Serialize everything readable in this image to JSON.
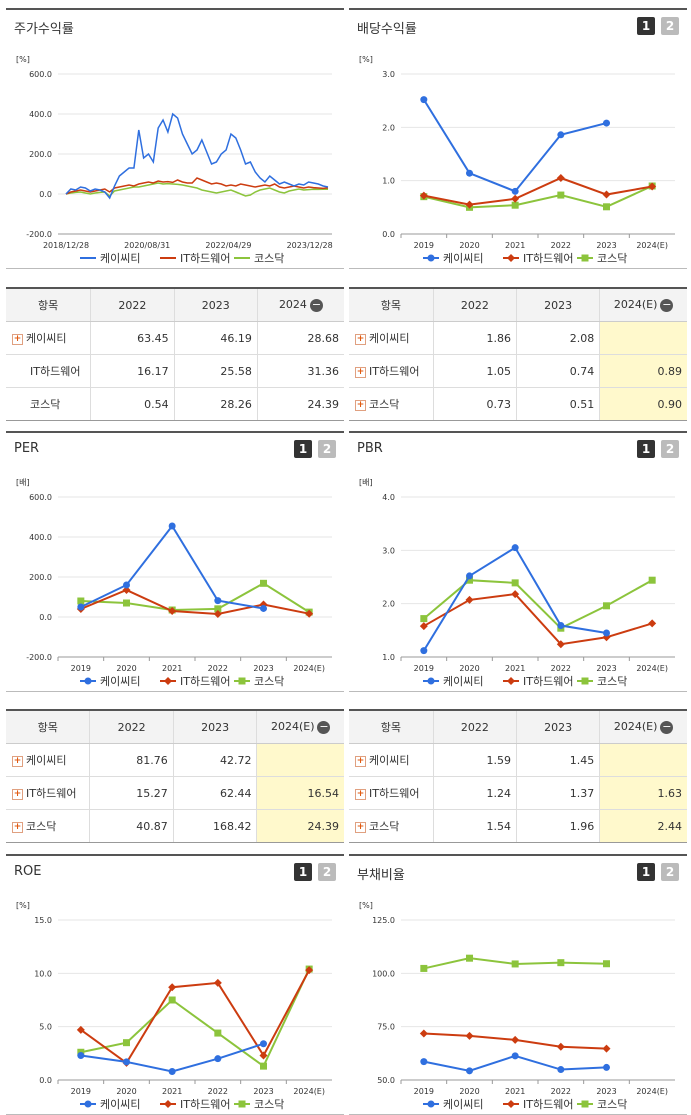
{
  "legend": [
    "케이씨티",
    "IT하드웨어",
    "코스닥"
  ],
  "colors": {
    "kct": "#2f6fdf",
    "it": "#cc3c10",
    "kosdaq": "#8cc43c"
  },
  "pager": {
    "p1": "1",
    "p2": "2"
  },
  "charts": {
    "stock": {
      "title": "주가수익률",
      "unit": "[%]"
    },
    "dividend": {
      "title": "배당수익률",
      "unit": "[%]"
    },
    "per": {
      "title": "PER",
      "unit": "[배]"
    },
    "pbr": {
      "title": "PBR",
      "unit": "[배]"
    },
    "roe": {
      "title": "ROE",
      "unit": "[%]"
    },
    "debt": {
      "title": "부채비율",
      "unit": "[%]"
    }
  },
  "tables": {
    "stock": {
      "headers": [
        "항목",
        "2022",
        "2023",
        "2024"
      ],
      "rows": [
        {
          "name": "케이씨티",
          "v": [
            "63.45",
            "46.19",
            "28.68"
          ]
        },
        {
          "name": "IT하드웨어",
          "v": [
            "16.17",
            "25.58",
            "31.36"
          ]
        },
        {
          "name": "코스닥",
          "v": [
            "0.54",
            "28.26",
            "24.39"
          ]
        }
      ]
    },
    "dividend": {
      "headers": [
        "항목",
        "2022",
        "2023",
        "2024(E)"
      ],
      "rows": [
        {
          "name": "케이씨티",
          "v": [
            "1.86",
            "2.08",
            ""
          ]
        },
        {
          "name": "IT하드웨어",
          "v": [
            "1.05",
            "0.74",
            "0.89"
          ]
        },
        {
          "name": "코스닥",
          "v": [
            "0.73",
            "0.51",
            "0.90"
          ]
        }
      ]
    },
    "per": {
      "headers": [
        "항목",
        "2022",
        "2023",
        "2024(E)"
      ],
      "rows": [
        {
          "name": "케이씨티",
          "v": [
            "81.76",
            "42.72",
            ""
          ]
        },
        {
          "name": "IT하드웨어",
          "v": [
            "15.27",
            "62.44",
            "16.54"
          ]
        },
        {
          "name": "코스닥",
          "v": [
            "40.87",
            "168.42",
            "24.39"
          ]
        }
      ]
    },
    "pbr": {
      "headers": [
        "항목",
        "2022",
        "2023",
        "2024(E)"
      ],
      "rows": [
        {
          "name": "케이씨티",
          "v": [
            "1.59",
            "1.45",
            ""
          ]
        },
        {
          "name": "IT하드웨어",
          "v": [
            "1.24",
            "1.37",
            "1.63"
          ]
        },
        {
          "name": "코스닥",
          "v": [
            "1.54",
            "1.96",
            "2.44"
          ]
        }
      ]
    }
  },
  "chart_data": [
    {
      "id": "stock",
      "type": "line",
      "title": "주가수익률",
      "ylabel": "[%]",
      "ylim": [
        -200,
        600
      ],
      "yticks": [
        "600.0",
        "400.0",
        "200.0",
        "0.0",
        "-200.0"
      ],
      "xticks": [
        "2018/12/28",
        "2020/08/31",
        "2022/04/29",
        "2023/12/28"
      ],
      "series": [
        {
          "name": "케이씨티",
          "values": [
            0,
            25,
            20,
            35,
            30,
            15,
            25,
            20,
            10,
            -20,
            40,
            90,
            110,
            130,
            130,
            320,
            180,
            200,
            160,
            330,
            370,
            310,
            400,
            380,
            300,
            250,
            200,
            220,
            270,
            210,
            150,
            160,
            200,
            220,
            300,
            280,
            220,
            150,
            160,
            110,
            80,
            60,
            90,
            70,
            50,
            60,
            50,
            40,
            50,
            45,
            60,
            55,
            50,
            40,
            35
          ]
        },
        {
          "name": "IT하드웨어",
          "values": [
            0,
            10,
            15,
            20,
            15,
            10,
            15,
            20,
            25,
            10,
            30,
            35,
            40,
            45,
            40,
            50,
            55,
            60,
            55,
            65,
            60,
            62,
            58,
            70,
            60,
            55,
            55,
            80,
            70,
            60,
            50,
            55,
            50,
            40,
            45,
            40,
            50,
            45,
            40,
            35,
            40,
            45,
            40,
            50,
            35,
            30,
            35,
            40,
            35,
            30,
            35,
            32,
            30,
            28,
            31
          ]
        },
        {
          "name": "코스닥",
          "values": [
            0,
            5,
            8,
            10,
            5,
            0,
            5,
            8,
            10,
            -10,
            15,
            20,
            25,
            30,
            35,
            35,
            40,
            45,
            50,
            55,
            50,
            52,
            50,
            48,
            45,
            40,
            35,
            30,
            20,
            15,
            10,
            5,
            10,
            15,
            20,
            10,
            0,
            -10,
            -5,
            10,
            20,
            25,
            30,
            20,
            10,
            5,
            15,
            20,
            25,
            20,
            22,
            24,
            23,
            24,
            24
          ]
        }
      ]
    },
    {
      "id": "dividend",
      "type": "line",
      "title": "배당수익률",
      "ylabel": "[%]",
      "ylim": [
        0,
        3
      ],
      "yticks": [
        "3.0",
        "2.0",
        "1.0",
        "0.0"
      ],
      "categories": [
        "2019",
        "2020",
        "2021",
        "2022",
        "2023",
        "2024(E)"
      ],
      "series": [
        {
          "name": "케이씨티",
          "values": [
            2.52,
            1.14,
            0.8,
            1.86,
            2.08,
            null
          ]
        },
        {
          "name": "IT하드웨어",
          "values": [
            0.72,
            0.55,
            0.66,
            1.05,
            0.74,
            0.89
          ]
        },
        {
          "name": "코스닥",
          "values": [
            0.7,
            0.5,
            0.54,
            0.73,
            0.51,
            0.9
          ]
        }
      ]
    },
    {
      "id": "per",
      "type": "line",
      "title": "PER",
      "ylabel": "[배]",
      "ylim": [
        -200,
        600
      ],
      "yticks": [
        "600.0",
        "400.0",
        "200.0",
        "0.0",
        "-200.0"
      ],
      "categories": [
        "2019",
        "2020",
        "2021",
        "2022",
        "2023",
        "2024(E)"
      ],
      "series": [
        {
          "name": "케이씨티",
          "values": [
            50,
            160,
            455,
            81.76,
            42.72,
            null
          ]
        },
        {
          "name": "IT하드웨어",
          "values": [
            40,
            135,
            30,
            15.27,
            62.44,
            16.54
          ]
        },
        {
          "name": "코스닥",
          "values": [
            80,
            70,
            35,
            40.87,
            168.42,
            24.39
          ]
        }
      ]
    },
    {
      "id": "pbr",
      "type": "line",
      "title": "PBR",
      "ylabel": "[배]",
      "ylim": [
        1,
        4
      ],
      "yticks": [
        "4.0",
        "3.0",
        "2.0",
        "1.0"
      ],
      "categories": [
        "2019",
        "2020",
        "2021",
        "2022",
        "2023",
        "2024(E)"
      ],
      "series": [
        {
          "name": "케이씨티",
          "values": [
            1.12,
            2.52,
            3.05,
            1.59,
            1.45,
            null
          ]
        },
        {
          "name": "IT하드웨어",
          "values": [
            1.58,
            2.07,
            2.18,
            1.24,
            1.37,
            1.63
          ]
        },
        {
          "name": "코스닥",
          "values": [
            1.72,
            2.44,
            2.39,
            1.54,
            1.96,
            2.44
          ]
        }
      ]
    },
    {
      "id": "roe",
      "type": "line",
      "title": "ROE",
      "ylabel": "[%]",
      "ylim": [
        0,
        15
      ],
      "yticks": [
        "15.0",
        "10.0",
        "5.0",
        "0.0"
      ],
      "categories": [
        "2019",
        "2020",
        "2021",
        "2022",
        "2023",
        "2024(E)"
      ],
      "series": [
        {
          "name": "케이씨티",
          "values": [
            2.3,
            1.7,
            0.8,
            2.0,
            3.4,
            null
          ]
        },
        {
          "name": "IT하드웨어",
          "values": [
            4.7,
            1.6,
            8.7,
            9.1,
            2.3,
            10.3
          ]
        },
        {
          "name": "코스닥",
          "values": [
            2.6,
            3.5,
            7.5,
            4.4,
            1.3,
            10.4
          ]
        }
      ]
    },
    {
      "id": "debt",
      "type": "line",
      "title": "부채비율",
      "ylabel": "[%]",
      "ylim": [
        50,
        125
      ],
      "yticks": [
        "125.0",
        "100.0",
        "75.0",
        "50.0"
      ],
      "categories": [
        "2019",
        "2020",
        "2021",
        "2022",
        "2023",
        "2024(E)"
      ],
      "series": [
        {
          "name": "케이씨티",
          "values": [
            58.6,
            54.3,
            61.3,
            54.9,
            55.9,
            null
          ]
        },
        {
          "name": "IT하드웨어",
          "values": [
            71.8,
            70.7,
            68.8,
            65.6,
            64.7,
            null
          ]
        },
        {
          "name": "코스닥",
          "values": [
            102.3,
            107.1,
            104.4,
            105.0,
            104.5,
            null
          ]
        }
      ]
    }
  ]
}
